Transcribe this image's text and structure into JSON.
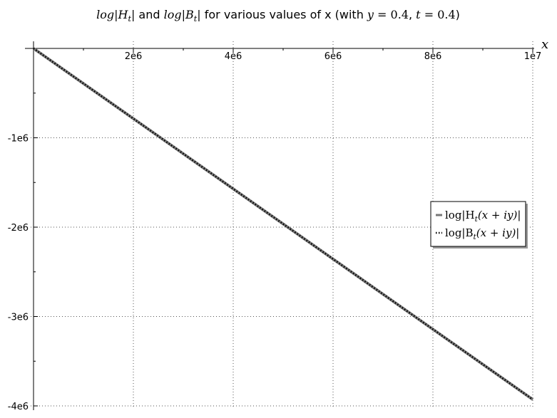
{
  "chart_data": {
    "type": "line",
    "title": {
      "segments": [
        {
          "text": "log|H",
          "style": "math"
        },
        {
          "text": "t",
          "style": "math-sub"
        },
        {
          "text": "|",
          "style": "math"
        },
        {
          "text": " and ",
          "style": "plain"
        },
        {
          "text": "log|B",
          "style": "math"
        },
        {
          "text": "t",
          "style": "math-sub"
        },
        {
          "text": "|",
          "style": "math"
        },
        {
          "text": " for various values of x (with ",
          "style": "plain"
        },
        {
          "text": "y",
          "style": "math"
        },
        {
          "text": " = 0.4",
          "style": "math-up"
        },
        {
          "text": ", ",
          "style": "plain"
        },
        {
          "text": "t",
          "style": "math"
        },
        {
          "text": " = 0.4",
          "style": "math-up"
        },
        {
          "text": ")",
          "style": "plain"
        }
      ]
    },
    "xlabel": "x",
    "ylabel": "",
    "xlim": [
      0,
      10000000
    ],
    "ylim": [
      -4000000,
      0
    ],
    "grid": true,
    "x_ticks": [
      {
        "value": 2000000,
        "label": "2e6"
      },
      {
        "value": 4000000,
        "label": "4e6"
      },
      {
        "value": 6000000,
        "label": "6e6"
      },
      {
        "value": 8000000,
        "label": "8e6"
      },
      {
        "value": 10000000,
        "label": "1e7"
      }
    ],
    "y_ticks": [
      {
        "value": -1000000,
        "label": "-1e6"
      },
      {
        "value": -2000000,
        "label": "-2e6"
      },
      {
        "value": -3000000,
        "label": "-3e6"
      },
      {
        "value": -4000000,
        "label": "-4e6"
      }
    ],
    "legend_position": "right",
    "series": [
      {
        "name": "log|H_t(x+iy)|",
        "legend_segments": [
          {
            "text": "log|H",
            "style": "math-up"
          },
          {
            "text": "t",
            "style": "math-sub"
          },
          {
            "text": "(x + iy)|",
            "style": "math"
          }
        ],
        "style": "solid",
        "color": "#777777",
        "x": [
          0,
          10000000
        ],
        "y": [
          0,
          -3928000
        ]
      },
      {
        "name": "log|B_t(x+iy)|",
        "legend_segments": [
          {
            "text": "log|B",
            "style": "math-up"
          },
          {
            "text": "t",
            "style": "math-sub"
          },
          {
            "text": "(x + iy)|",
            "style": "math"
          }
        ],
        "style": "dotted",
        "color": "#000000",
        "x": [
          0,
          10000000
        ],
        "y": [
          0,
          -3928000
        ]
      }
    ]
  }
}
